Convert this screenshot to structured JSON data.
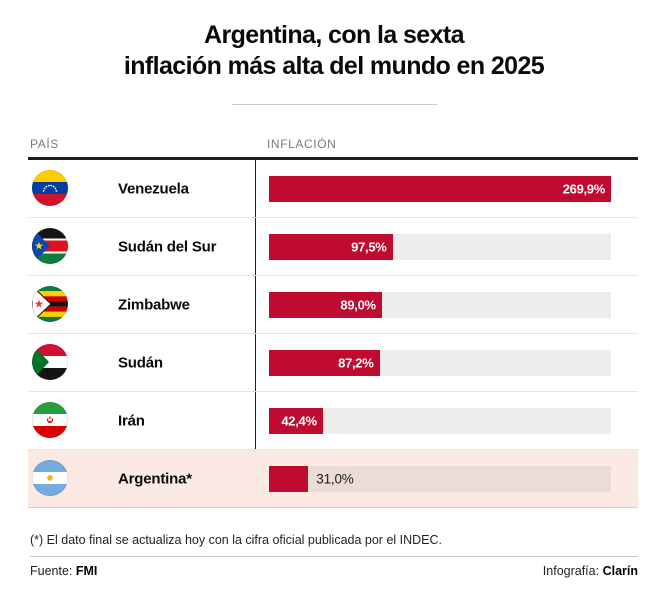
{
  "title": {
    "line1": "Argentina, con la sexta",
    "line2": "inflación más alta del mundo en 2025"
  },
  "table": {
    "col_country": "PAÍS",
    "col_inflation": "INFLACIÓN",
    "max_value": 269.9,
    "rows": [
      {
        "country": "Venezuela",
        "flag": "venezuela",
        "value": 269.9,
        "label": "269,9%",
        "label_inside": true,
        "highlight": false
      },
      {
        "country": "Sudán del Sur",
        "flag": "south-sudan",
        "value": 97.5,
        "label": "97,5%",
        "label_inside": true,
        "highlight": false
      },
      {
        "country": "Zimbabwe",
        "flag": "zimbabwe",
        "value": 89.0,
        "label": "89,0%",
        "label_inside": true,
        "highlight": false
      },
      {
        "country": "Sudán",
        "flag": "sudan",
        "value": 87.2,
        "label": "87,2%",
        "label_inside": true,
        "highlight": false
      },
      {
        "country": "Irán",
        "flag": "iran",
        "value": 42.4,
        "label": "42,4%",
        "label_inside": true,
        "highlight": false
      },
      {
        "country": "Argentina*",
        "flag": "argentina",
        "value": 31.0,
        "label": "31,0%",
        "label_inside": false,
        "highlight": true
      }
    ]
  },
  "footnote": "(*) El dato final se actualiza hoy con la cifra oficial publicada por el INDEC.",
  "source": {
    "prefix": "Fuente: ",
    "name": "FMI"
  },
  "credit": {
    "prefix": "Infografía: ",
    "name": "Clarín"
  },
  "colors": {
    "bar": "#C00B31",
    "track": "#ECECEA",
    "highlight_row_bg": "#FBE9E3",
    "highlight_track": "#EBDCD5",
    "rule_dark": "#1d1d1b",
    "rule_light": "#c9c9c9"
  },
  "chart_data": {
    "type": "bar",
    "orientation": "horizontal",
    "title": "Argentina, con la sexta inflación más alta del mundo en 2025",
    "categories": [
      "Venezuela",
      "Sudán del Sur",
      "Zimbabwe",
      "Sudán",
      "Irán",
      "Argentina*"
    ],
    "values": [
      269.9,
      97.5,
      89.0,
      87.2,
      42.4,
      31.0
    ],
    "value_labels": [
      "269,9%",
      "97,5%",
      "89,0%",
      "87,2%",
      "42,4%",
      "31,0%"
    ],
    "unit": "%",
    "xlabel": "INFLACIÓN",
    "category_header": "PAÍS",
    "xlim": [
      0,
      269.9
    ],
    "grid": false,
    "legend": false,
    "highlighted_category": "Argentina*",
    "footnote": "(*) El dato final se actualiza hoy con la cifra oficial publicada por el INDEC.",
    "source": "FMI",
    "credit": "Clarín"
  }
}
